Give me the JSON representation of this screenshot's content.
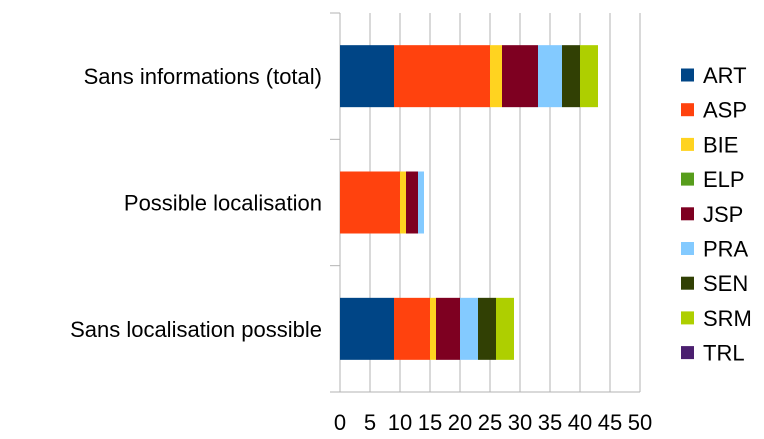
{
  "chart_data": {
    "type": "bar",
    "orientation": "horizontal",
    "stacked": true,
    "categories": [
      "Sans informations (total)",
      "Possible localisation",
      "Sans localisation possible"
    ],
    "xlim": [
      0,
      50
    ],
    "xticks": [
      "0",
      "5",
      "10",
      "15",
      "20",
      "25",
      "30",
      "35",
      "40",
      "45",
      "50"
    ],
    "grid": true,
    "legend_position": "right",
    "series": [
      {
        "name": "ART",
        "color": "#004586",
        "values": [
          9,
          0,
          9
        ]
      },
      {
        "name": "ASP",
        "color": "#ff420e",
        "values": [
          16,
          10,
          6
        ]
      },
      {
        "name": "BIE",
        "color": "#ffd320",
        "values": [
          2,
          1,
          1
        ]
      },
      {
        "name": "ELP",
        "color": "#579d1c",
        "values": [
          0,
          0,
          0
        ]
      },
      {
        "name": "JSP",
        "color": "#7e0021",
        "values": [
          6,
          2,
          4
        ]
      },
      {
        "name": "PRA",
        "color": "#83caff",
        "values": [
          4,
          1,
          3
        ]
      },
      {
        "name": "SEN",
        "color": "#314004",
        "values": [
          3,
          0,
          3
        ]
      },
      {
        "name": "SRM",
        "color": "#aecf00",
        "values": [
          3,
          0,
          3
        ]
      },
      {
        "name": "TRL",
        "color": "#4b1f6f",
        "values": [
          0,
          0,
          0
        ]
      }
    ]
  }
}
